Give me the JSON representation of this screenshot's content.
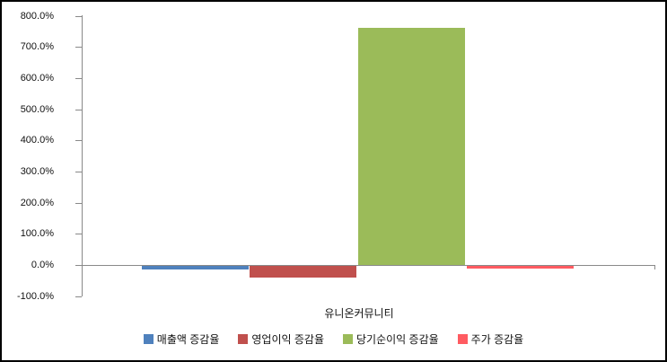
{
  "chart_data": {
    "type": "bar",
    "title": "",
    "categories": [
      "유니온커뮤니티"
    ],
    "series": [
      {
        "name": "매출액 증감율",
        "color": "#4F81BD",
        "values": [
          -13
        ]
      },
      {
        "name": "영업이익 증감율",
        "color": "#C0504D",
        "values": [
          -41
        ]
      },
      {
        "name": "당기순이익 증감율",
        "color": "#9BBB59",
        "values": [
          761
        ]
      },
      {
        "name": "주가 증감율",
        "color": "#FF5B61",
        "values": [
          -12
        ]
      }
    ],
    "xlabel": "",
    "ylabel": "",
    "ylim": [
      -100,
      800
    ],
    "ytick_step": 100,
    "ytick_suffix": "%",
    "ytick_decimals": 1,
    "grid": false,
    "legend_position": "bottom",
    "axis_color": "#898989",
    "text_color": "#111111"
  }
}
